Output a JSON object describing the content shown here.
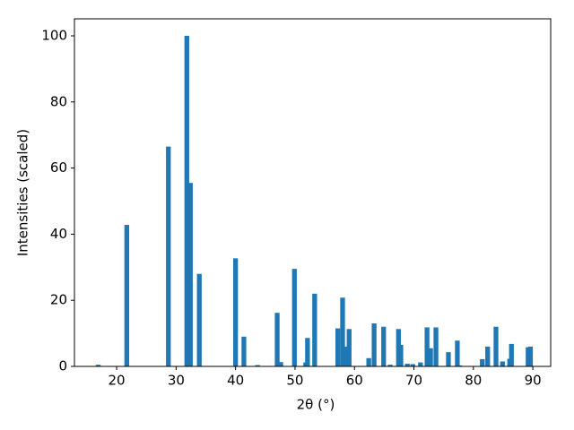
{
  "chart_data": {
    "type": "bar",
    "x_label": "2θ (°)",
    "y_label": "Intensities (scaled)",
    "color": "#1f77b4",
    "bar_width": 0.8,
    "x": [
      16.9,
      21.7,
      28.7,
      31.8,
      32.4,
      33.9,
      40.0,
      41.4,
      43.7,
      47.0,
      47.6,
      49.9,
      51.8,
      52.1,
      53.3,
      57.2,
      58.0,
      58.5,
      59.1,
      62.4,
      63.3,
      64.9,
      66.0,
      67.4,
      67.8,
      68.9,
      69.8,
      71.1,
      72.2,
      72.8,
      73.7,
      75.8,
      77.3,
      77.7,
      81.5,
      82.4,
      83.8,
      84.9,
      86.1,
      86.4,
      89.2,
      89.6
    ],
    "series": [
      {
        "name": "Intensity",
        "color": "#1f77b4",
        "values": [
          0.5,
          42.8,
          66.5,
          100,
          55.5,
          28,
          32.7,
          9,
          0.4,
          16.2,
          1.3,
          29.5,
          1.2,
          8.6,
          22,
          11.5,
          20.8,
          6,
          11.3,
          2.5,
          13,
          12,
          0.5,
          11.3,
          6.5,
          0.8,
          0.7,
          1.2,
          11.8,
          5.5,
          11.8,
          4.3,
          7.8,
          0.3,
          2.2,
          6,
          12,
          1.5,
          2.3,
          6.8,
          5.8,
          6
        ]
      }
    ],
    "xlim": [
      12.9,
      93.0
    ],
    "ylim": [
      0,
      105.15
    ],
    "xticks": [
      20,
      30,
      40,
      50,
      60,
      70,
      80,
      90
    ],
    "yticks": [
      0,
      20,
      40,
      60,
      80,
      100
    ]
  }
}
